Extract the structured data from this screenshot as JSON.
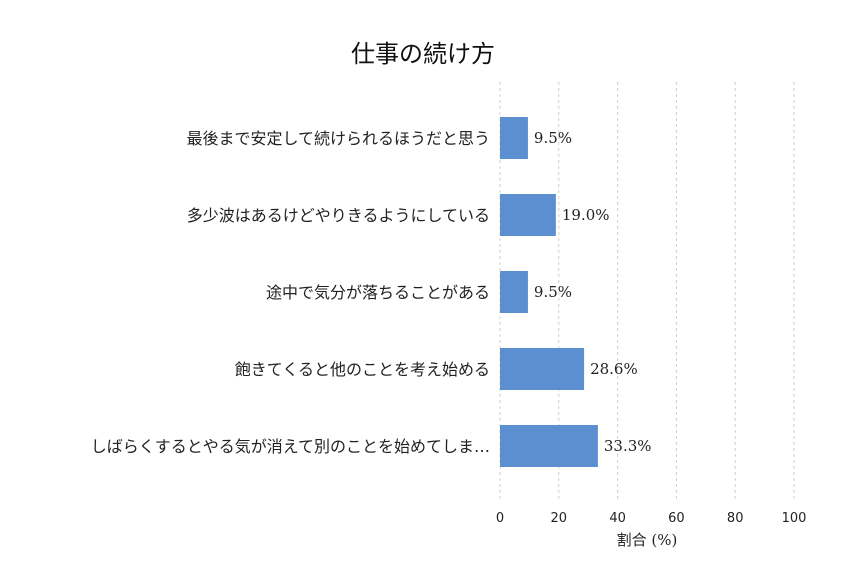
{
  "chart_data": {
    "type": "bar",
    "orientation": "horizontal",
    "title": "仕事の続け方",
    "xlabel": "割合 (%)",
    "ylabel": "",
    "xlim": [
      0,
      100
    ],
    "xticks": [
      "0",
      "20",
      "40",
      "60",
      "80",
      "100"
    ],
    "grid": "vertical-dashed",
    "bar_color": "#5b8fd0",
    "categories": [
      "最後まで安定して続けられるほうだと思う",
      "多少波はあるけどやりきるようにしている",
      "途中で気分が落ちることがある",
      "飽きてくると他のことを考え始める",
      "しばらくするとやる気が消えて別のことを始めてしま…"
    ],
    "values": [
      9.5,
      19.0,
      9.5,
      28.6,
      33.3
    ],
    "value_labels": [
      "9.5%",
      "19.0%",
      "9.5%",
      "28.6%",
      "33.3%"
    ]
  }
}
